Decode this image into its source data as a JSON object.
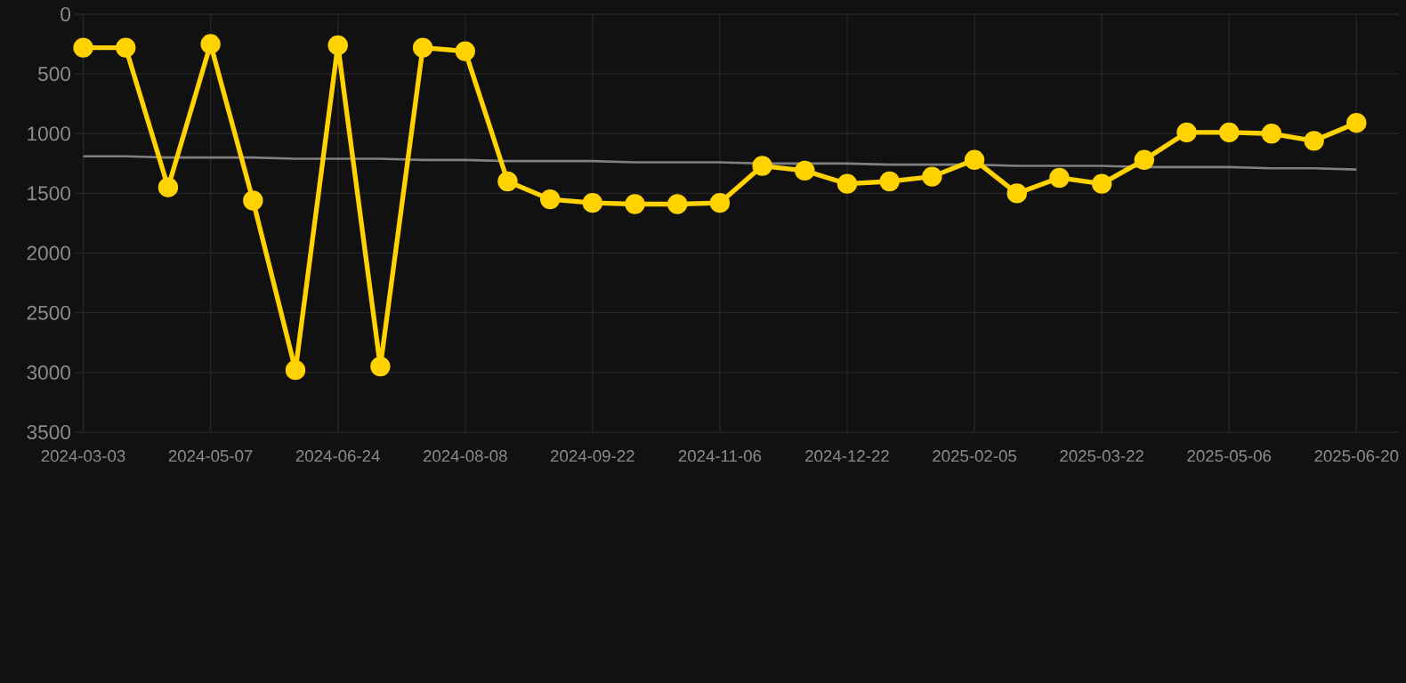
{
  "chart_data": {
    "type": "line",
    "categories": [
      "2024-03-03",
      null,
      null,
      "2024-05-07",
      null,
      null,
      "2024-06-24",
      null,
      null,
      "2024-08-08",
      null,
      null,
      "2024-09-22",
      null,
      null,
      "2024-11-06",
      null,
      null,
      "2024-12-22",
      null,
      null,
      "2025-02-05",
      null,
      null,
      "2025-03-22",
      null,
      null,
      "2025-05-06",
      null,
      null,
      "2025-06-20"
    ],
    "series": [
      {
        "color": "#ffd200",
        "marker": "circle",
        "values": [
          280,
          280,
          1450,
          250,
          1560,
          2980,
          260,
          2950,
          280,
          310,
          1400,
          1550,
          1580,
          1590,
          1590,
          1580,
          1270,
          1310,
          1420,
          1400,
          1360,
          1220,
          1500,
          1370,
          1420,
          1220,
          990,
          990,
          1000,
          1060,
          910
        ]
      },
      {
        "type": "line",
        "color": "#808080",
        "marker": "none",
        "values": [
          1190,
          1190,
          1200,
          1200,
          1200,
          1210,
          1210,
          1210,
          1220,
          1220,
          1230,
          1230,
          1230,
          1240,
          1240,
          1240,
          1250,
          1250,
          1250,
          1260,
          1260,
          1260,
          1270,
          1270,
          1270,
          1280,
          1280,
          1280,
          1290,
          1290,
          1300
        ]
      }
    ],
    "ylim": [
      3500,
      0
    ],
    "yticks": [
      0,
      500,
      1000,
      1500,
      2000,
      2500,
      3000,
      3500
    ],
    "grid": true
  }
}
